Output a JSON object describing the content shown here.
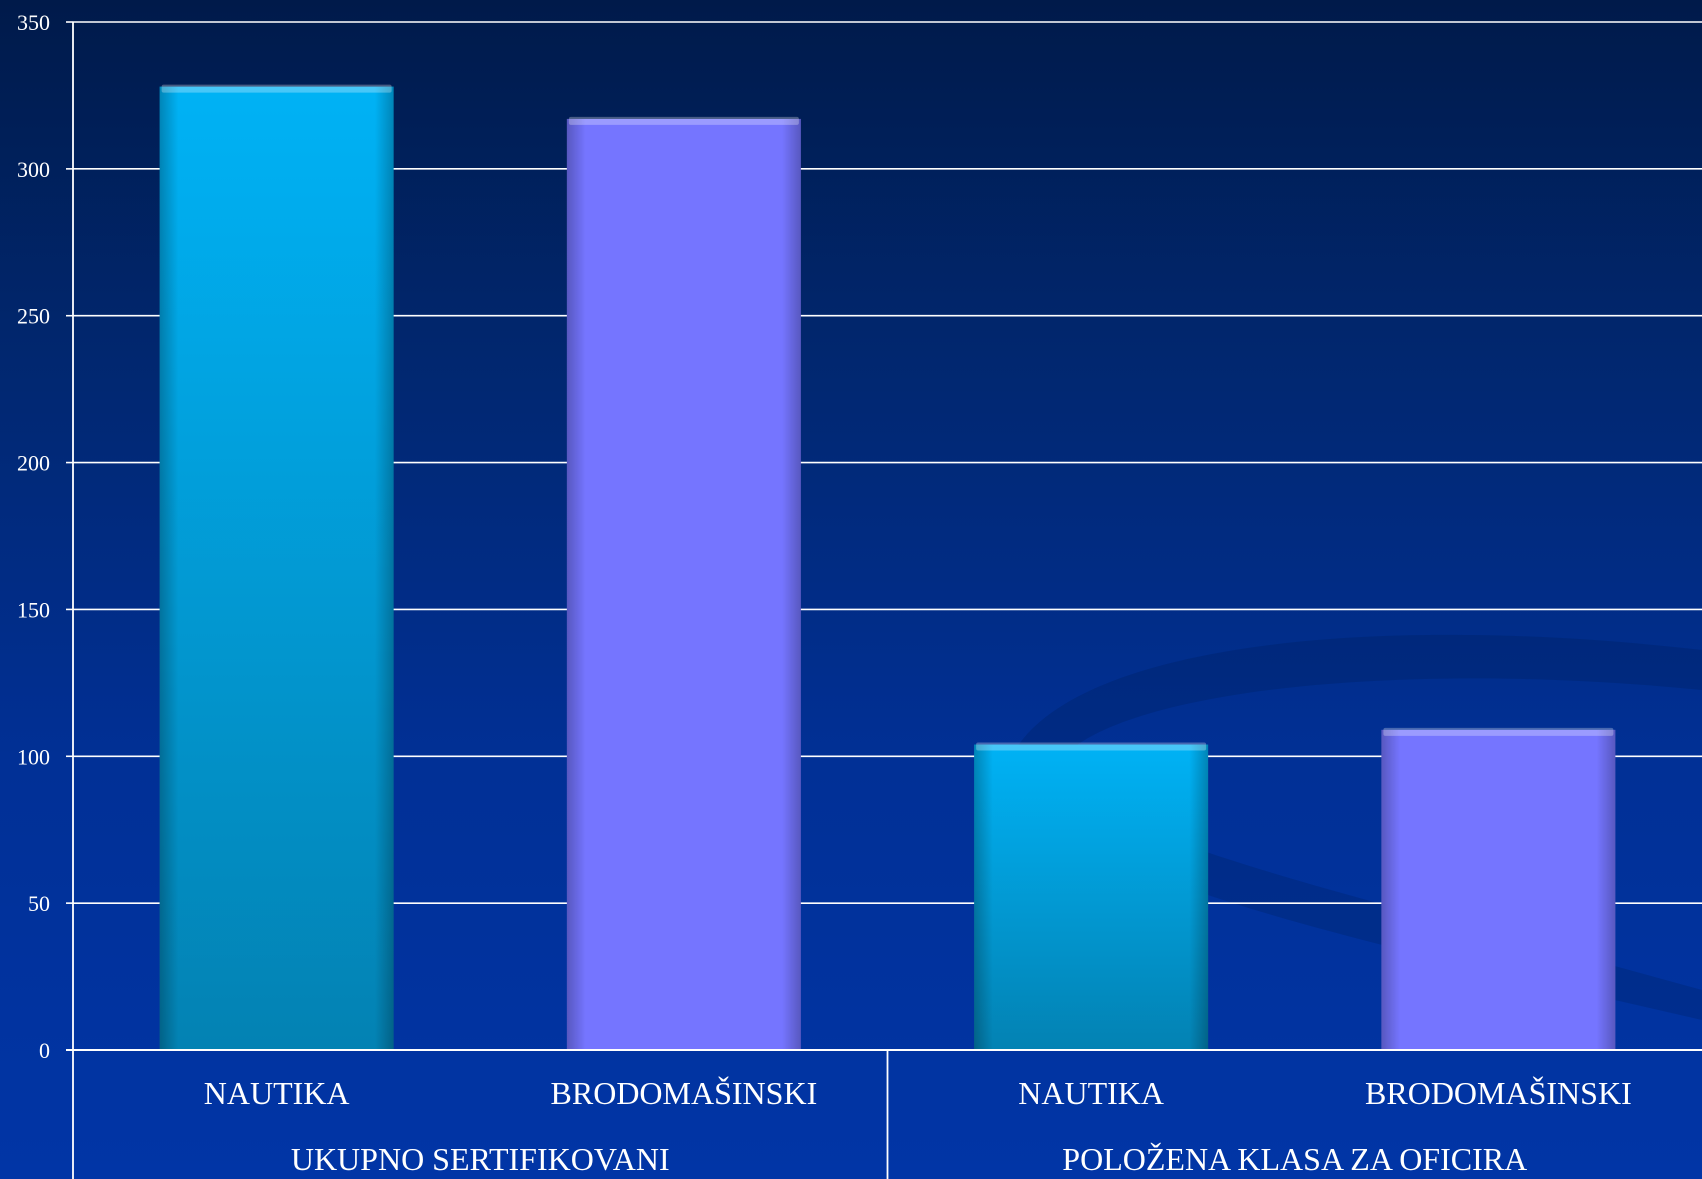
{
  "chart_data": {
    "type": "bar",
    "ylim": [
      0,
      350
    ],
    "ytick_step": 50,
    "grid": true,
    "groups": [
      {
        "label": "UKUPNO SERTIFIKOVANI",
        "bars": [
          {
            "label": "NAUTIKA",
            "value": 328,
            "color": "#00aeef"
          },
          {
            "label": "BRODOMAŠINSKI",
            "value": 317,
            "color": "#7575ff"
          }
        ]
      },
      {
        "label": "POLOŽENA KLASA ZA OFICIRA",
        "bars": [
          {
            "label": "NAUTIKA",
            "value": 104,
            "color": "#00aeef"
          },
          {
            "label": "BRODOMAŠINSKI",
            "value": 109,
            "color": "#7575ff"
          }
        ]
      }
    ]
  }
}
